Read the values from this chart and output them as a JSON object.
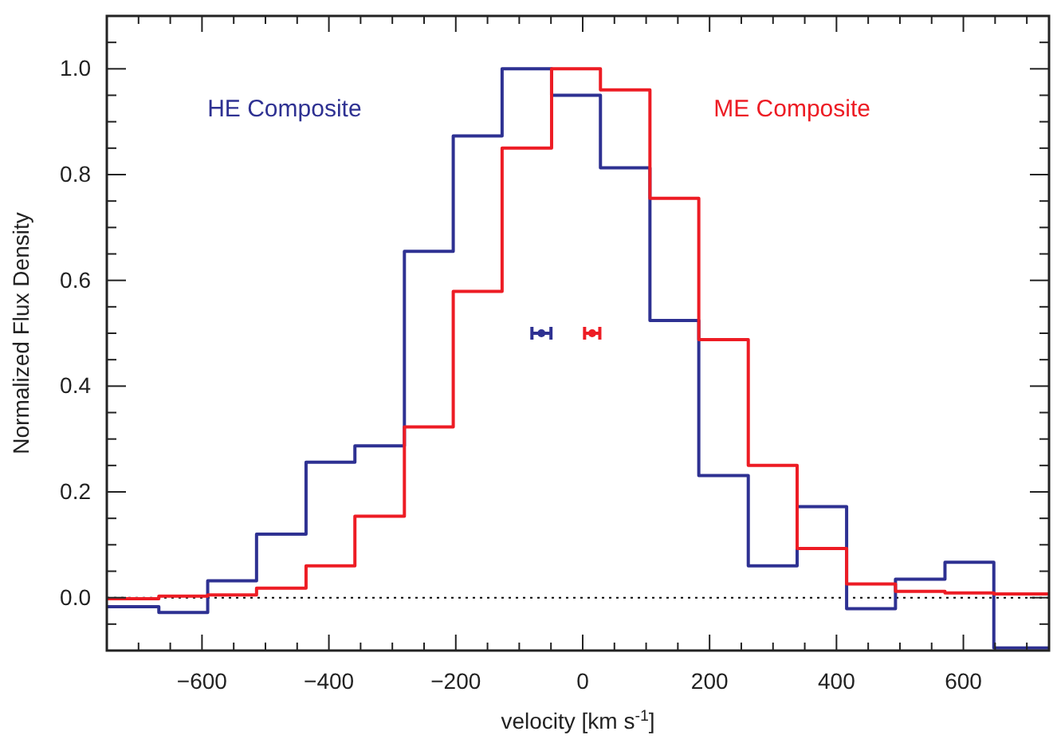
{
  "chart_data": {
    "type": "histogram",
    "xlabel": "velocity [km s$^{-1}$]",
    "ylabel": "Normalized Flux Density",
    "bins": [
      -750,
      -668,
      -591,
      -514,
      -436,
      -359,
      -281,
      -204,
      -127,
      -49,
      28,
      106,
      183,
      261,
      338,
      416,
      493,
      571,
      648,
      735
    ],
    "series": [
      {
        "name": "HE Composite",
        "color": "#2e3192",
        "values": [
          -0.017,
          -0.028,
          0.032,
          0.12,
          0.256,
          0.287,
          0.655,
          0.873,
          1.0,
          0.95,
          0.813,
          0.524,
          0.231,
          0.06,
          0.172,
          -0.021,
          0.035,
          0.067,
          -0.095
        ]
      },
      {
        "name": "ME Composite",
        "color": "#ed1c24",
        "values": [
          -0.002,
          0.003,
          0.005,
          0.018,
          0.06,
          0.154,
          0.323,
          0.579,
          0.85,
          1.0,
          0.96,
          0.755,
          0.488,
          0.25,
          0.093,
          0.026,
          0.012,
          0.009,
          0.007
        ]
      },
      {
        "type": "scatter",
        "color": "#2e3192",
        "x": [
          -65
        ],
        "values": [
          0.5
        ],
        "xerrors": [
          15
        ]
      },
      {
        "type": "scatter",
        "color": "#ed1c24",
        "x": [
          15
        ],
        "values": [
          0.5
        ],
        "xerrors": [
          12
        ]
      }
    ],
    "xlim": [
      -750,
      735
    ],
    "ylim": [
      -0.1,
      1.1
    ],
    "xticks": [
      {
        "value": -700,
        "label": null
      },
      {
        "value": -650,
        "label": null
      },
      {
        "value": -600,
        "label": "−600"
      },
      {
        "value": -550,
        "label": null
      },
      {
        "value": -500,
        "label": null
      },
      {
        "value": -450,
        "label": null
      },
      {
        "value": -400,
        "label": "−400"
      },
      {
        "value": -350,
        "label": null
      },
      {
        "value": -300,
        "label": null
      },
      {
        "value": -250,
        "label": null
      },
      {
        "value": -200,
        "label": "−200"
      },
      {
        "value": -150,
        "label": null
      },
      {
        "value": -100,
        "label": null
      },
      {
        "value": -50,
        "label": null
      },
      0,
      {
        "value": 50,
        "label": null
      },
      {
        "value": 100,
        "label": null
      },
      {
        "value": 150,
        "label": null
      },
      200,
      {
        "value": 250,
        "label": null
      },
      {
        "value": 300,
        "label": null
      },
      {
        "value": 350,
        "label": null
      },
      400,
      {
        "value": 450,
        "label": null
      },
      {
        "value": 500,
        "label": null
      },
      {
        "value": 550,
        "label": null
      },
      600,
      {
        "value": 650,
        "label": null
      },
      {
        "value": 700,
        "label": null
      }
    ],
    "yticks": [
      {
        "value": -0.05,
        "label": null
      },
      {
        "value": 0,
        "label": "0.0"
      },
      {
        "value": 0.05,
        "label": null
      },
      {
        "value": 0.1,
        "label": null
      },
      {
        "value": 0.15,
        "label": null
      },
      {
        "value": 0.2,
        "label": "0.2"
      },
      {
        "value": 0.25,
        "label": null
      },
      {
        "value": 0.3,
        "label": null
      },
      {
        "value": 0.35,
        "label": null
      },
      {
        "value": 0.4,
        "label": "0.4"
      },
      {
        "value": 0.45,
        "label": null
      },
      {
        "value": 0.5,
        "label": null
      },
      {
        "value": 0.55,
        "label": null
      },
      {
        "value": 0.6,
        "label": "0.6"
      },
      {
        "value": 0.65,
        "label": null
      },
      {
        "value": 0.7,
        "label": null
      },
      {
        "value": 0.75,
        "label": null
      },
      {
        "value": 0.8,
        "label": "0.8"
      },
      {
        "value": 0.85,
        "label": null
      },
      {
        "value": 0.9,
        "label": null
      },
      {
        "value": 0.95,
        "label": null
      },
      {
        "value": 1.0,
        "label": "1.0"
      },
      {
        "value": 1.05,
        "label": null
      }
    ],
    "ref_lines": [
      {
        "axis": "y",
        "value": 0,
        "line_style": "dotted",
        "color": "#000000"
      }
    ],
    "grid": false,
    "legend": false
  }
}
